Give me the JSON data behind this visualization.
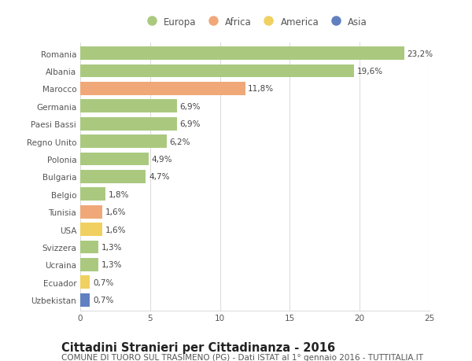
{
  "categories": [
    "Romania",
    "Albania",
    "Marocco",
    "Germania",
    "Paesi Bassi",
    "Regno Unito",
    "Polonia",
    "Bulgaria",
    "Belgio",
    "Tunisia",
    "USA",
    "Svizzera",
    "Ucraina",
    "Ecuador",
    "Uzbekistan"
  ],
  "values": [
    23.2,
    19.6,
    11.8,
    6.9,
    6.9,
    6.2,
    4.9,
    4.7,
    1.8,
    1.6,
    1.6,
    1.3,
    1.3,
    0.7,
    0.7
  ],
  "continents": [
    "Europa",
    "Europa",
    "Africa",
    "Europa",
    "Europa",
    "Europa",
    "Europa",
    "Europa",
    "Europa",
    "Africa",
    "America",
    "Europa",
    "Europa",
    "America",
    "Asia"
  ],
  "labels": [
    "23,2%",
    "19,6%",
    "11,8%",
    "6,9%",
    "6,9%",
    "6,2%",
    "4,9%",
    "4,7%",
    "1,8%",
    "1,6%",
    "1,6%",
    "1,3%",
    "1,3%",
    "0,7%",
    "0,7%"
  ],
  "colors": {
    "Europa": "#aac97f",
    "Africa": "#f0a878",
    "America": "#f0d060",
    "Asia": "#6080c0"
  },
  "legend_entries": [
    "Europa",
    "Africa",
    "America",
    "Asia"
  ],
  "title": "Cittadini Stranieri per Cittadinanza - 2016",
  "subtitle": "COMUNE DI TUORO SUL TRASIMENO (PG) - Dati ISTAT al 1° gennaio 2016 - TUTTITALIA.IT",
  "xlim": [
    0,
    25
  ],
  "xticks": [
    0,
    5,
    10,
    15,
    20,
    25
  ],
  "background_color": "#ffffff",
  "grid_color": "#dddddd",
  "bar_height": 0.75,
  "title_fontsize": 10.5,
  "subtitle_fontsize": 7.5,
  "label_fontsize": 7.5,
  "tick_fontsize": 7.5,
  "legend_fontsize": 8.5
}
